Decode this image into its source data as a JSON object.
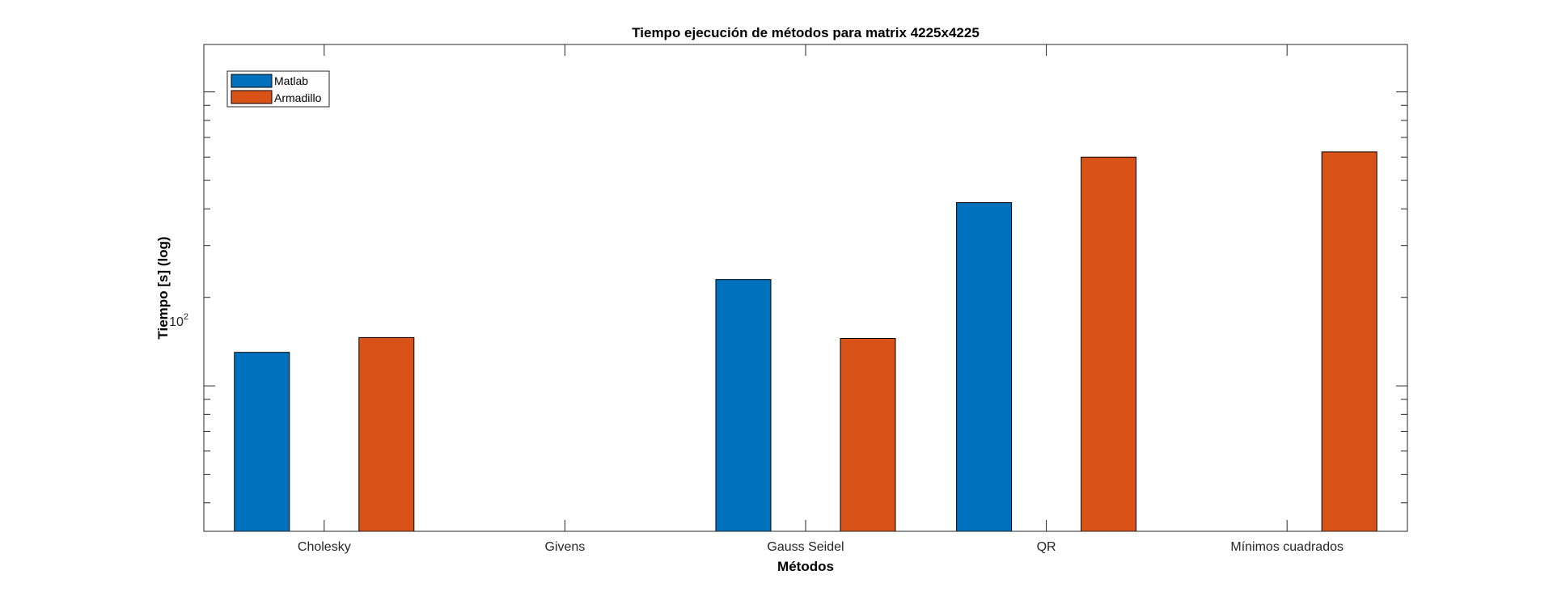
{
  "chart_data": {
    "type": "bar",
    "title": "Tiempo ejecución de métodos para matrix 4225x4225",
    "xlabel": "Métodos",
    "ylabel": "Tiempo [s] (log)",
    "yscale": "log",
    "ylim": [
      32,
      1450
    ],
    "yticklabel": {
      "base": "10",
      "exponent": "2",
      "value": 100
    },
    "categories": [
      "Cholesky",
      "Givens",
      "Gauss Seidel",
      "QR",
      "Mínimos cuadrados"
    ],
    "series": [
      {
        "name": "Matlab",
        "color": "#0072BD",
        "values": [
          130,
          null,
          230,
          420,
          null
        ]
      },
      {
        "name": "Armadillo",
        "color": "#D95319",
        "values": [
          146,
          null,
          145,
          600,
          625
        ]
      }
    ],
    "legend": "top-left",
    "grid": false
  }
}
